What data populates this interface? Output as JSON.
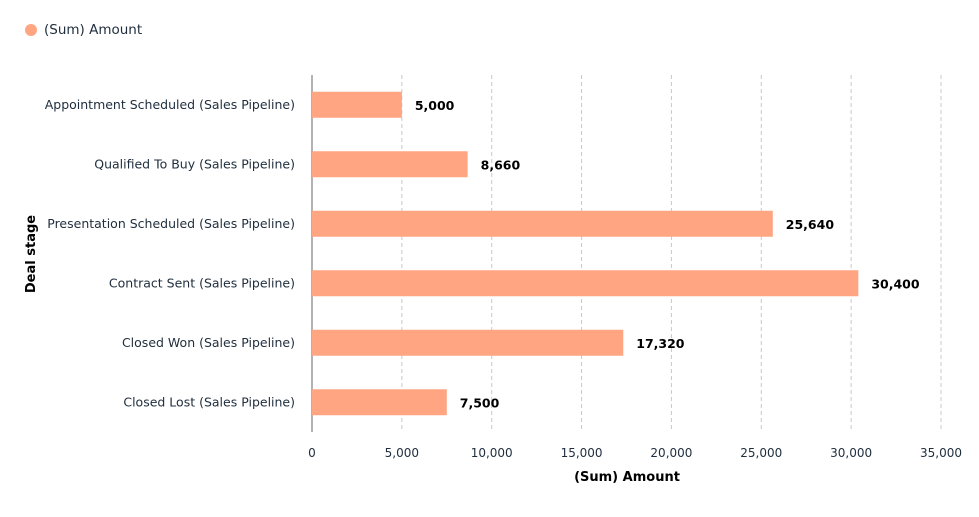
{
  "chart_data": {
    "type": "bar",
    "orientation": "horizontal",
    "categories": [
      "Appointment Scheduled (Sales Pipeline)",
      "Qualified To Buy (Sales Pipeline)",
      "Presentation Scheduled (Sales Pipeline)",
      "Contract Sent (Sales Pipeline)",
      "Closed Won (Sales Pipeline)",
      "Closed Lost (Sales Pipeline)"
    ],
    "series": [
      {
        "name": "(Sum) Amount",
        "values": [
          5000,
          8660,
          25640,
          30400,
          17320,
          7500
        ],
        "color": "#FFA581"
      }
    ],
    "value_labels": [
      "5,000",
      "8,660",
      "25,640",
      "30,400",
      "17,320",
      "7,500"
    ],
    "xlabel": "(Sum) Amount",
    "ylabel": "Deal stage",
    "xlim": [
      0,
      35000
    ],
    "x_ticks": [
      0,
      5000,
      10000,
      15000,
      20000,
      25000,
      30000,
      35000
    ],
    "x_tick_labels": [
      "0",
      "5,000",
      "10,000",
      "15,000",
      "20,000",
      "25,000",
      "30,000",
      "35,000"
    ],
    "grid": "vertical dashed",
    "legend": {
      "placement": "top-left",
      "entries": [
        "(Sum) Amount"
      ]
    }
  }
}
